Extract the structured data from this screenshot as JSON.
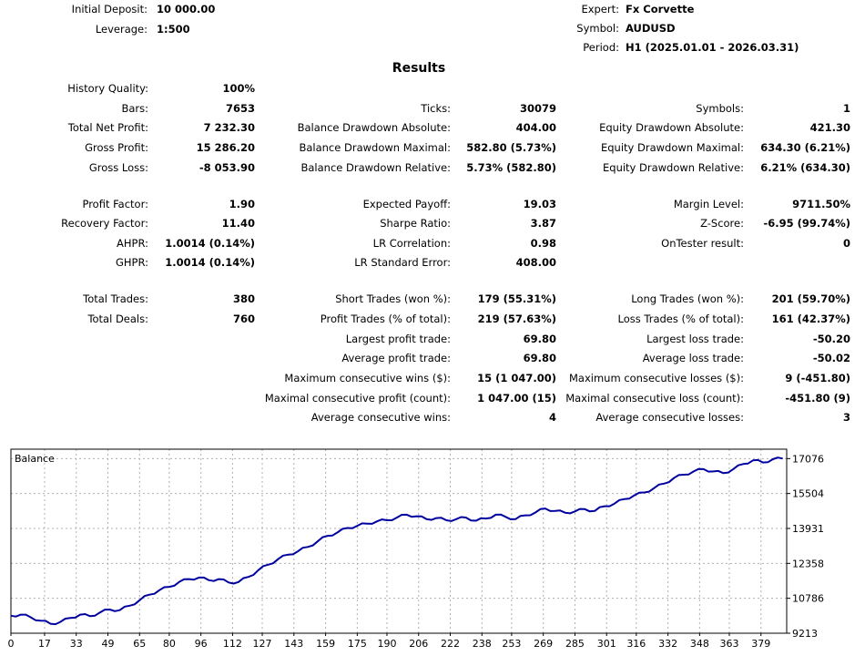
{
  "header": {
    "initial_deposit_label": "Initial Deposit:",
    "initial_deposit": "10 000.00",
    "leverage_label": "Leverage:",
    "leverage": "1:500",
    "expert_label": "Expert:",
    "expert": "Fx Corvette",
    "symbol_label": "Symbol:",
    "symbol": "AUDUSD",
    "period_label": "Period:",
    "period": "H1 (2025.01.01 - 2026.03.31)"
  },
  "results_title": "Results",
  "col1": [
    {
      "label": "History Quality:",
      "value": "100%"
    },
    {
      "label": "Bars:",
      "value": "7653"
    },
    {
      "label": "Total Net Profit:",
      "value": "7 232.30"
    },
    {
      "label": "Gross Profit:",
      "value": "15 286.20"
    },
    {
      "label": "Gross Loss:",
      "value": "-8 053.90"
    },
    {
      "label": "Profit Factor:",
      "value": "1.90"
    },
    {
      "label": "Recovery Factor:",
      "value": "11.40"
    },
    {
      "label": "AHPR:",
      "value": "1.0014 (0.14%)"
    },
    {
      "label": "GHPR:",
      "value": "1.0014 (0.14%)"
    },
    {
      "label": "Total Trades:",
      "value": "380"
    },
    {
      "label": "Total Deals:",
      "value": "760"
    }
  ],
  "col2": [
    {
      "label": "Ticks:",
      "value": "30079"
    },
    {
      "label": "Balance Drawdown Absolute:",
      "value": "404.00"
    },
    {
      "label": "Balance Drawdown Maximal:",
      "value": "582.80 (5.73%)"
    },
    {
      "label": "Balance Drawdown Relative:",
      "value": "5.73% (582.80)"
    },
    {
      "label": "Expected Payoff:",
      "value": "19.03"
    },
    {
      "label": "Sharpe Ratio:",
      "value": "3.87"
    },
    {
      "label": "LR Correlation:",
      "value": "0.98"
    },
    {
      "label": "LR Standard Error:",
      "value": "408.00"
    },
    {
      "label": "Short Trades (won %):",
      "value": "179 (55.31%)"
    },
    {
      "label": "Profit Trades (% of total):",
      "value": "219 (57.63%)"
    },
    {
      "label": "Largest profit trade:",
      "value": "69.80"
    },
    {
      "label": "Average profit trade:",
      "value": "69.80"
    },
    {
      "label": "Maximum consecutive wins ($):",
      "value": "15 (1 047.00)"
    },
    {
      "label": "Maximal consecutive profit (count):",
      "value": "1 047.00 (15)"
    },
    {
      "label": "Average consecutive wins:",
      "value": "4"
    }
  ],
  "col3": [
    {
      "label": "Symbols:",
      "value": "1"
    },
    {
      "label": "Equity Drawdown Absolute:",
      "value": "421.30"
    },
    {
      "label": "Equity Drawdown Maximal:",
      "value": "634.30 (6.21%)"
    },
    {
      "label": "Equity Drawdown Relative:",
      "value": "6.21% (634.30)"
    },
    {
      "label": "Margin Level:",
      "value": "9711.50%"
    },
    {
      "label": "Z-Score:",
      "value": "-6.95 (99.74%)"
    },
    {
      "label": "OnTester result:",
      "value": "0"
    },
    {
      "label": "Long Trades (won %):",
      "value": "201 (59.70%)"
    },
    {
      "label": "Loss Trades (% of total):",
      "value": "161 (42.37%)"
    },
    {
      "label": "Largest loss trade:",
      "value": "-50.20"
    },
    {
      "label": "Average loss trade:",
      "value": "-50.02"
    },
    {
      "label": "Maximum consecutive losses ($):",
      "value": "9 (-451.80)"
    },
    {
      "label": "Maximal consecutive loss (count):",
      "value": "-451.80 (9)"
    },
    {
      "label": "Average consecutive losses:",
      "value": "3"
    }
  ],
  "chart_data": {
    "type": "line",
    "title": "Balance",
    "xlabel": "",
    "ylabel": "",
    "xlim": [
      0,
      392
    ],
    "ylim": [
      9213,
      17500
    ],
    "grid": true,
    "line_color": "#0000a0",
    "x_ticks": [
      0,
      17,
      33,
      49,
      65,
      80,
      96,
      112,
      127,
      143,
      159,
      175,
      190,
      206,
      222,
      238,
      253,
      269,
      285,
      301,
      316,
      332,
      348,
      363,
      379
    ],
    "y_ticks": [
      9213,
      10786,
      12358,
      13931,
      15504,
      17076
    ],
    "series": [
      {
        "name": "Balance",
        "x": [
          0,
          5,
          10,
          15,
          20,
          25,
          30,
          35,
          40,
          45,
          50,
          55,
          60,
          65,
          70,
          75,
          80,
          85,
          90,
          95,
          100,
          105,
          110,
          115,
          120,
          125,
          130,
          135,
          140,
          145,
          150,
          155,
          160,
          165,
          170,
          175,
          180,
          185,
          190,
          195,
          200,
          205,
          210,
          215,
          220,
          225,
          230,
          235,
          240,
          245,
          250,
          255,
          260,
          265,
          270,
          275,
          280,
          285,
          290,
          295,
          300,
          305,
          310,
          315,
          320,
          325,
          330,
          335,
          340,
          345,
          350,
          355,
          360,
          365,
          370,
          375,
          380,
          385,
          390
        ],
        "y": [
          10000,
          10050,
          9930,
          9780,
          9640,
          9720,
          9900,
          10050,
          9980,
          10150,
          10280,
          10250,
          10450,
          10700,
          10950,
          11150,
          11300,
          11520,
          11650,
          11720,
          11600,
          11650,
          11500,
          11520,
          11750,
          12050,
          12300,
          12550,
          12750,
          12900,
          13100,
          13350,
          13600,
          13750,
          13950,
          14050,
          14150,
          14250,
          14300,
          14420,
          14550,
          14480,
          14350,
          14400,
          14300,
          14350,
          14420,
          14280,
          14380,
          14550,
          14450,
          14350,
          14520,
          14650,
          14830,
          14720,
          14640,
          14700,
          14800,
          14720,
          14930,
          15050,
          15250,
          15420,
          15550,
          15750,
          15950,
          16200,
          16350,
          16500,
          16600,
          16500,
          16420,
          16600,
          16830,
          17000,
          16900,
          17050,
          17076
        ]
      }
    ]
  }
}
